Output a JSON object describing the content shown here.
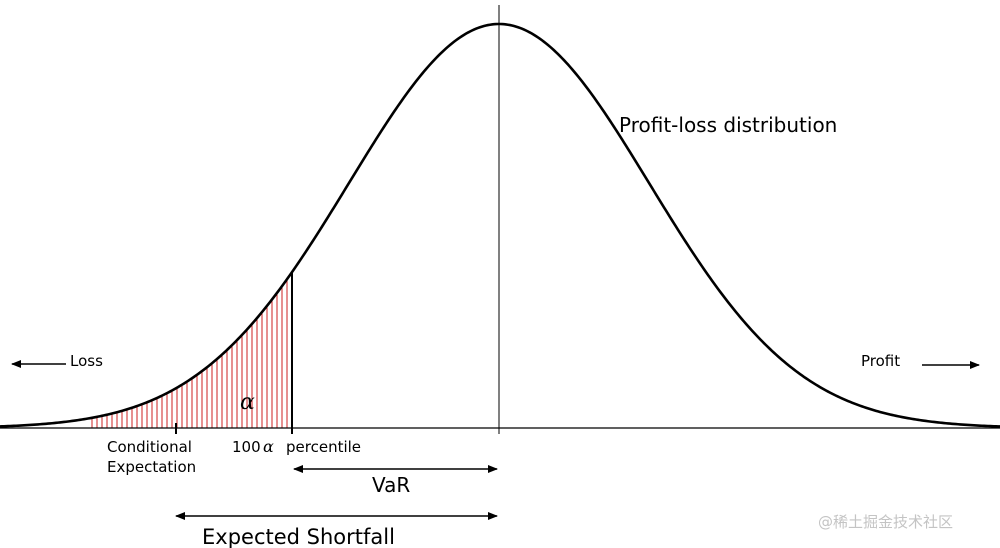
{
  "labels": {
    "curve": "Profit-loss distribution",
    "loss": "Loss",
    "profit": "Profit",
    "alpha": "α",
    "percentile_prefix": "100",
    "percentile_alpha": "α",
    "percentile_suffix": "percentile",
    "conditional_line1": "Conditional",
    "conditional_line2": "Expectation",
    "var": "VaR",
    "expected_shortfall": "Expected Shortfall"
  },
  "watermark": "@稀土掘金技术社区",
  "colors": {
    "curve": "#000000",
    "tail_hatch": "#cc2222",
    "axis": "#000000",
    "watermark": "#c4c4c4"
  }
}
